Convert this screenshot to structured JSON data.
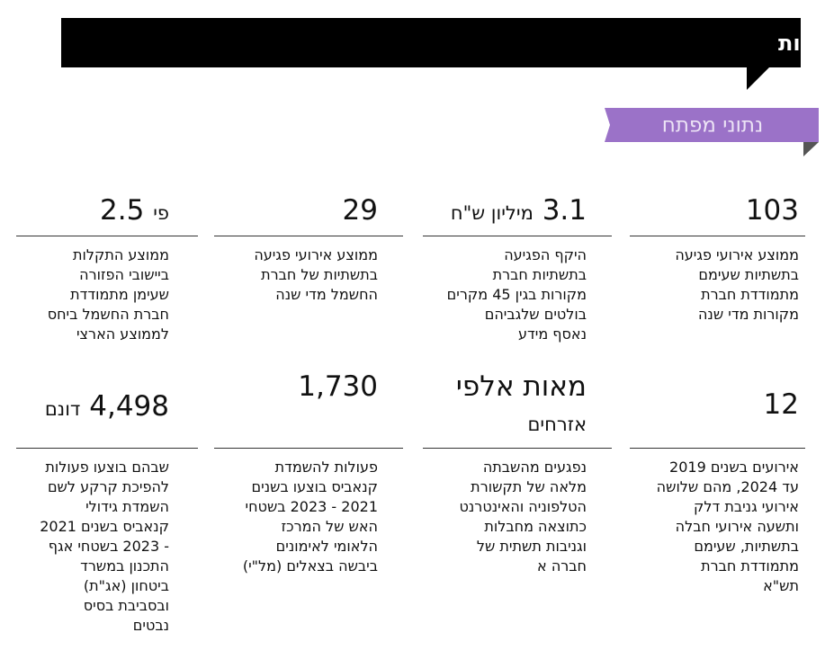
{
  "header": {
    "title": "שער שני - תשתיות ממשלתיות"
  },
  "tag": {
    "label": "נתוני מפתח"
  },
  "stats": [
    {
      "number": "103",
      "lines": [
        "ממוצע אירועי פגיעה",
        "בתשתיות שעימם",
        "מתמודדת חברת",
        "מקורות מדי שנה"
      ]
    },
    {
      "number": "3.1",
      "unit": "מיליון ש\"ח",
      "lines": [
        "היקף הפגיעה",
        "בתשתיות חברת",
        "מקורות בגין 45 מקרים",
        "בולטים שלגביהם",
        "נאסף מידע"
      ]
    },
    {
      "number": "29",
      "lines": [
        "ממוצע אירועי פגיעה",
        "בתשתיות של חברת",
        "החשמל מדי שנה"
      ]
    },
    {
      "number": "2.5",
      "unit": "פי",
      "lines": [
        "ממוצע התקלות",
        "ביישובי הפזורה",
        "שעימן מתמודדת",
        "חברת החשמל ביחס",
        "לממוצע הארצי"
      ]
    },
    {
      "number": "12",
      "lines": [
        "אירועים בשנים 2019",
        "עד 2024, מהם שלושה",
        "אירועי גניבת דלק",
        "ותשעה אירועי חבלה",
        "בתשתיות, שעימם",
        "מתמודדת חברת",
        "תש\"א"
      ]
    },
    {
      "number": "מאות אלפי",
      "unit": "אזרחים",
      "lines": [
        "נפגעים  מהשבתה",
        "מלאה של תקשורת",
        "הטלפוניה והאינטרנט",
        "כתוצאה מחבלות",
        "וגניבות תשתית של",
        "חברה א"
      ]
    },
    {
      "number": "1,730",
      "lines": [
        "פעולות להשמדת",
        "קנאביס בוצעו בשנים",
        "2021 - 2023 בשטחי",
        "האש של המרכז",
        "הלאומי לאימונים",
        "ביבשה בצאלים (מל\"י)"
      ]
    },
    {
      "number": "4,498",
      "unit": "דונם",
      "lines": [
        "שבהם בוצעו פעולות",
        "להפיכת קרקע לשם",
        "השמדת גידולי",
        "קנאביס בשנים 2021",
        "- 2023 בשטחי אגף",
        "התכנון במשרד",
        "ביטחון (אג\"ת)",
        "ובסביבת בסיס",
        "נבטים"
      ]
    }
  ]
}
